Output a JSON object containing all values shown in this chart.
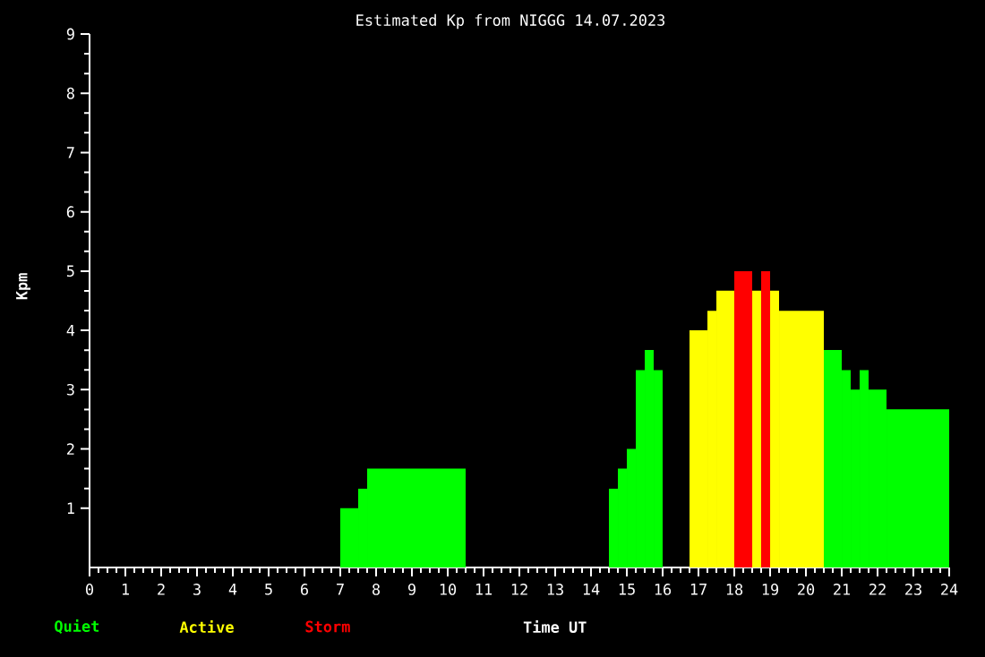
{
  "chart_data": {
    "type": "histogram",
    "title": "Estimated Kp from NIGGG 14.07.2023",
    "xlabel": "Time UT",
    "ylabel": "Kpm",
    "bins": [
      7,
      7.5,
      7.75,
      10.5,
      14.5,
      14.75,
      15,
      15.25,
      15.5,
      15.75,
      16,
      16.75,
      17.25,
      17.5,
      18,
      18.5,
      18.75,
      19,
      19.25,
      20.5,
      21,
      21.25,
      21.5,
      21.75,
      22.25,
      24
    ],
    "series": [
      {
        "name": "Quiet",
        "color": "#00ff00",
        "values": [
          1,
          1.33,
          1.67,
          null,
          1.33,
          1.67,
          2,
          3.33,
          3.67,
          3.33,
          null,
          null,
          null,
          null,
          null,
          null,
          null,
          null,
          null,
          3.67,
          3.33,
          3,
          3.33,
          3,
          2.67
        ]
      },
      {
        "name": "Active",
        "color": "#ffff00",
        "values": [
          null,
          null,
          null,
          null,
          null,
          null,
          null,
          null,
          null,
          null,
          null,
          4,
          4.33,
          4.67,
          null,
          4.67,
          null,
          4.67,
          4.33,
          null,
          null,
          null,
          null,
          null,
          null
        ]
      },
      {
        "name": "Storm",
        "color": "#ff0000",
        "values": [
          null,
          null,
          null,
          null,
          null,
          null,
          null,
          null,
          null,
          null,
          null,
          null,
          null,
          null,
          5,
          null,
          5,
          null,
          null,
          null,
          null,
          null,
          null,
          null,
          null
        ]
      }
    ],
    "xlim": [
      0,
      24
    ],
    "ylim": [
      0,
      9
    ],
    "xticks": [
      0,
      1,
      2,
      3,
      4,
      5,
      6,
      7,
      8,
      9,
      10,
      11,
      12,
      13,
      14,
      15,
      16,
      17,
      18,
      19,
      20,
      21,
      22,
      23,
      24
    ],
    "yticks": [
      1,
      2,
      3,
      4,
      5,
      6,
      7,
      8,
      9
    ],
    "grid": false,
    "legend": "bottom"
  }
}
